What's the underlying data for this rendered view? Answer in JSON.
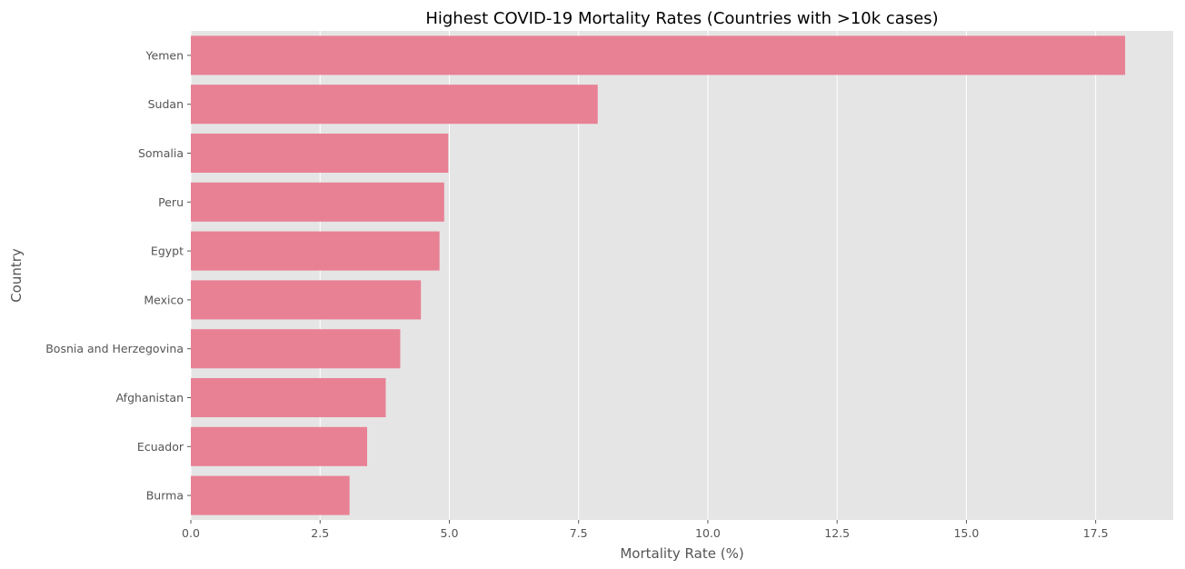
{
  "chart_data": {
    "type": "bar",
    "orientation": "horizontal",
    "title": "Highest COVID-19 Mortality Rates (Countries with >10k cases)",
    "xlabel": "Mortality Rate (%)",
    "ylabel": "Country",
    "categories": [
      "Yemen",
      "Sudan",
      "Somalia",
      "Peru",
      "Egypt",
      "Mexico",
      "Bosnia and Herzegovina",
      "Afghanistan",
      "Ecuador",
      "Burma"
    ],
    "values": [
      18.07,
      7.87,
      4.98,
      4.9,
      4.81,
      4.45,
      4.05,
      3.77,
      3.41,
      3.07
    ],
    "xlim": [
      0,
      19
    ],
    "xticks": [
      0,
      2.5,
      5,
      7.5,
      10,
      12.5,
      15,
      17.5
    ],
    "xtick_labels": [
      "0.0",
      "2.5",
      "5.0",
      "7.5",
      "10.0",
      "12.5",
      "15.0",
      "17.5"
    ],
    "grid": true,
    "colors": {
      "bar": "#e88194",
      "background": "#e5e5e5",
      "grid": "#ffffff"
    }
  }
}
